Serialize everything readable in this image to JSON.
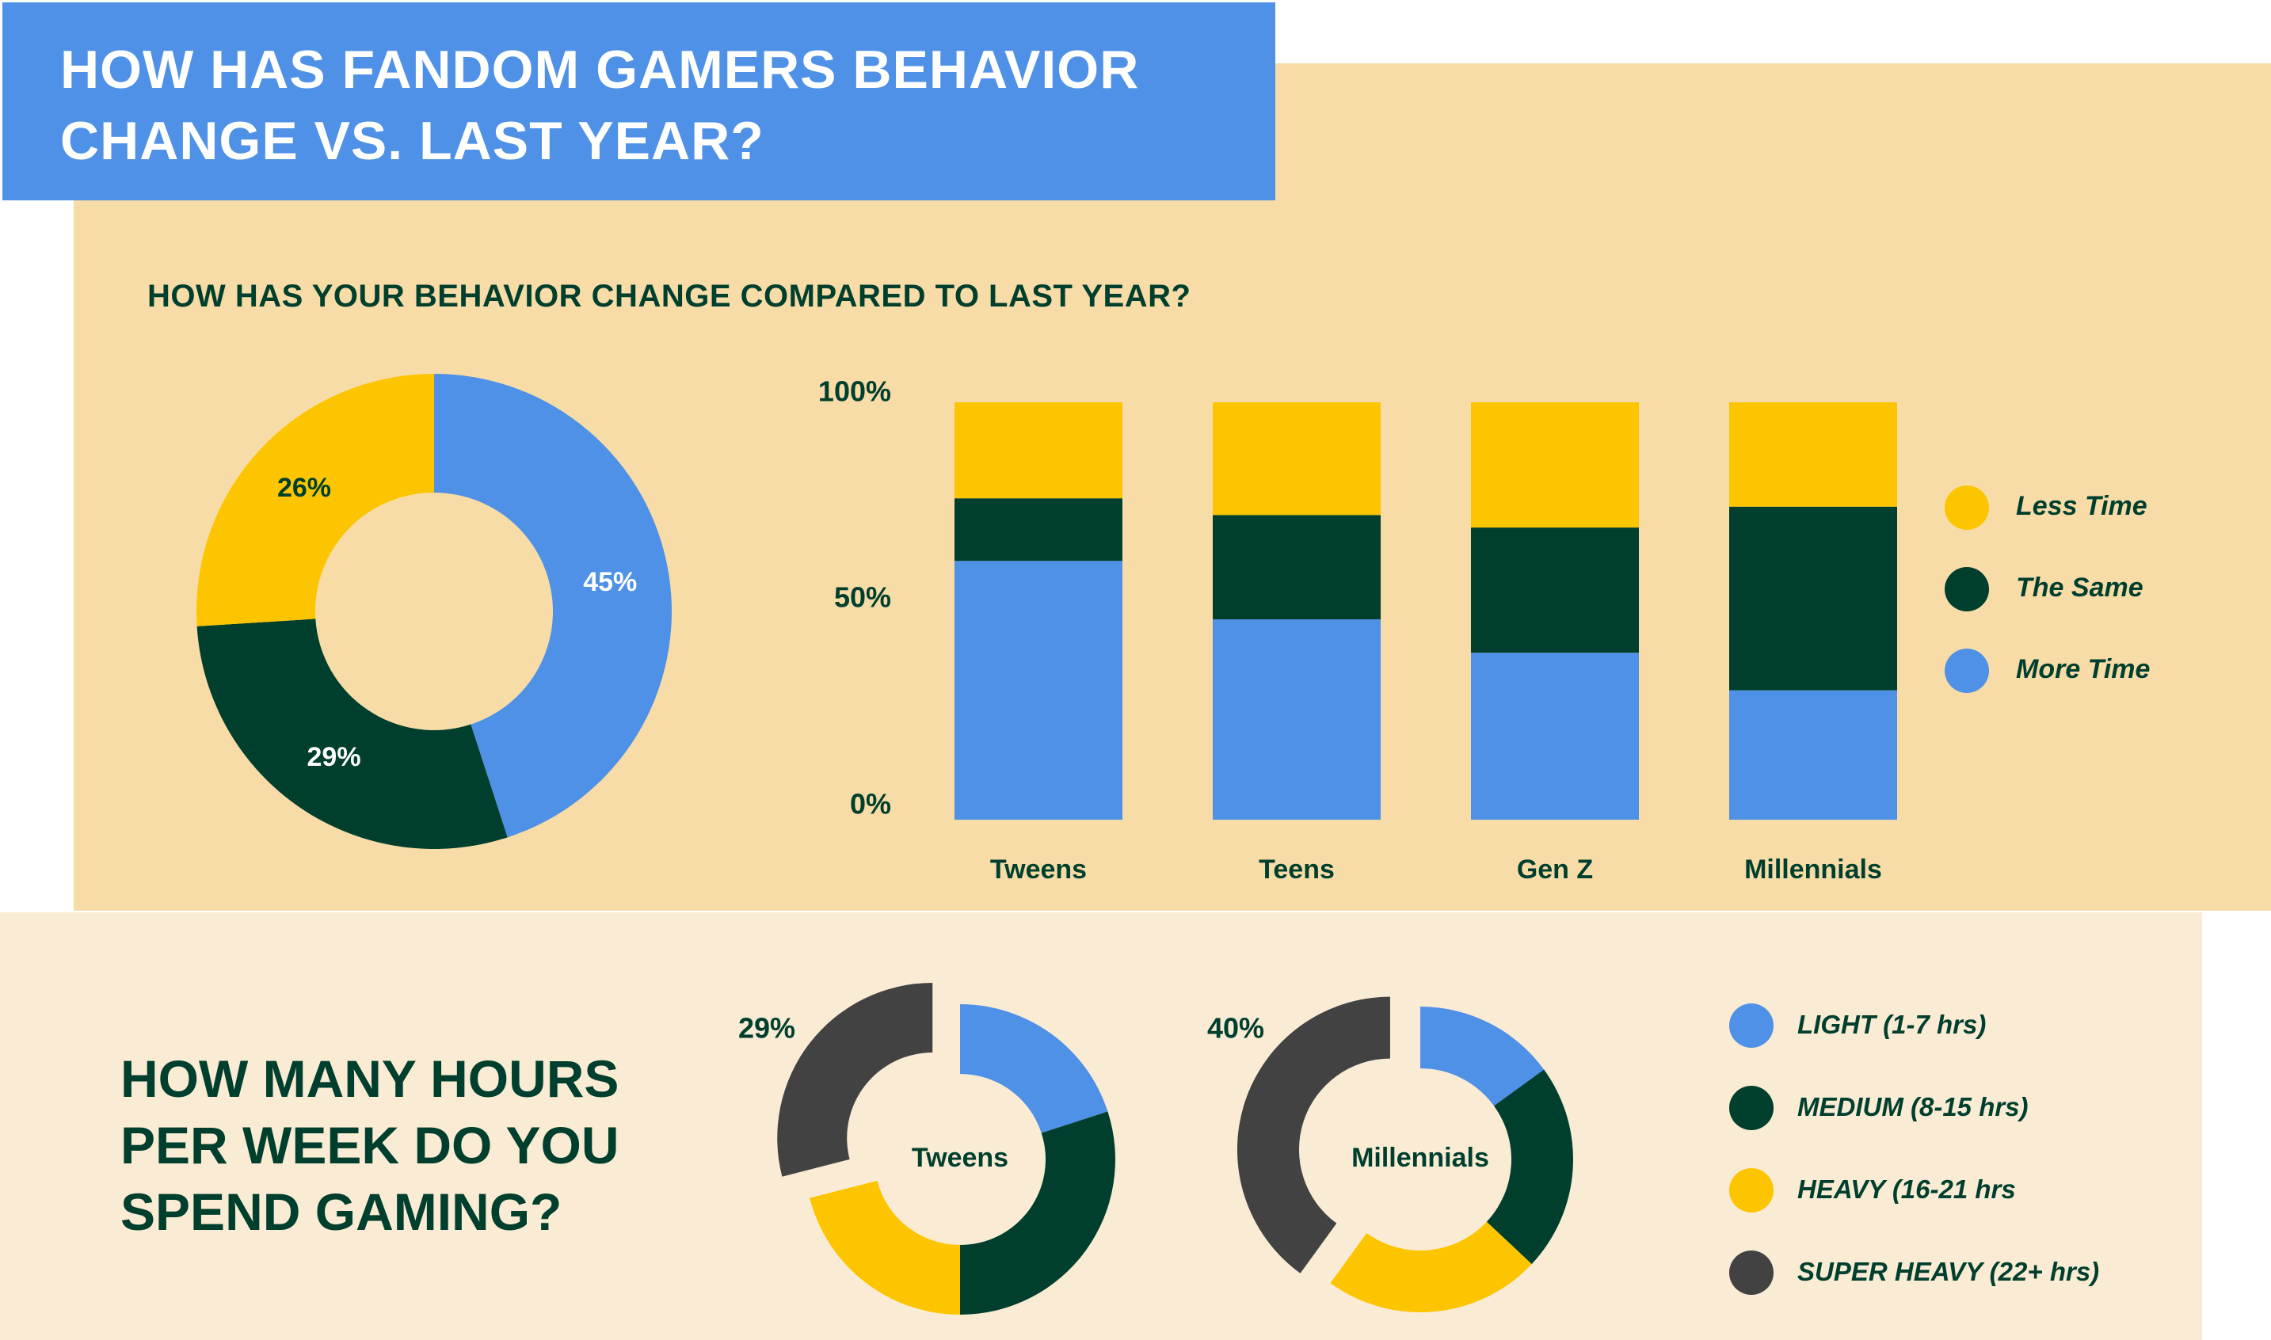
{
  "header": {
    "title_line1": "HOW HAS FANDOM GAMERS BEHAVIOR",
    "title_line2": "CHANGE VS. LAST YEAR?"
  },
  "behavior": {
    "subtitle": "HOW HAS YOUR BEHAVIOR CHANGE COMPARED TO LAST YEAR?"
  },
  "hours": {
    "title_line1": "HOW MANY HOURS",
    "title_line2": "PER WEEK DO YOU",
    "title_line3": "SPEND GAMING?"
  },
  "colors": {
    "blue": "#4f91e6",
    "green": "#003f2d",
    "yellow": "#fcc500",
    "dark": "#424242"
  },
  "chart_data": [
    {
      "type": "pie",
      "subtype": "donut",
      "slices": [
        {
          "label": "More Time",
          "value": 45,
          "display": "45%",
          "color": "#4f91e6"
        },
        {
          "label": "The Same",
          "value": 29,
          "display": "29%",
          "color": "#003f2d"
        },
        {
          "label": "Less Time",
          "value": 26,
          "display": "26%",
          "color": "#fcc500"
        }
      ]
    },
    {
      "type": "bar",
      "stacked": true,
      "categories": [
        "Tweens",
        "Teens",
        "Gen Z",
        "Millennials"
      ],
      "series": [
        {
          "name": "More Time",
          "color": "#4f91e6",
          "values": [
            62,
            48,
            40,
            31
          ]
        },
        {
          "name": "The Same",
          "color": "#003f2d",
          "values": [
            15,
            25,
            30,
            44
          ]
        },
        {
          "name": "Less Time",
          "color": "#fcc500",
          "values": [
            23,
            27,
            30,
            25
          ]
        }
      ],
      "yticks": [
        "0%",
        "50%",
        "100%"
      ],
      "ylim": [
        0,
        100
      ],
      "legend": "right"
    },
    {
      "type": "pie",
      "subtype": "donut",
      "center_label": "Tweens",
      "highlight_label": "29%",
      "slices": [
        {
          "label": "LIGHT (1-7 hrs)",
          "value": 20,
          "color": "#4f91e6"
        },
        {
          "label": "MEDIUM (8-15 hrs)",
          "value": 30,
          "color": "#003f2d"
        },
        {
          "label": "HEAVY (16-21 hrs",
          "value": 21,
          "color": "#fcc500"
        },
        {
          "label": "SUPER HEAVY (22+ hrs)",
          "value": 29,
          "color": "#424242",
          "exploded": true
        }
      ]
    },
    {
      "type": "pie",
      "subtype": "donut",
      "center_label": "Millennials",
      "highlight_label": "40%",
      "slices": [
        {
          "label": "LIGHT (1-7 hrs)",
          "value": 15,
          "color": "#4f91e6"
        },
        {
          "label": "MEDIUM (8-15 hrs)",
          "value": 22,
          "color": "#003f2d"
        },
        {
          "label": "HEAVY (16-21 hrs",
          "value": 23,
          "color": "#fcc500"
        },
        {
          "label": "SUPER HEAVY (22+ hrs)",
          "value": 40,
          "color": "#424242",
          "exploded": true
        }
      ]
    }
  ],
  "legend_behavior": [
    {
      "label": "Less Time",
      "color": "#fcc500"
    },
    {
      "label": "The Same",
      "color": "#003f2d"
    },
    {
      "label": "More Time",
      "color": "#4f91e6"
    }
  ],
  "legend_hours": [
    {
      "label": "LIGHT (1-7 hrs)",
      "color": "#4f91e6"
    },
    {
      "label": "MEDIUM (8-15 hrs)",
      "color": "#003f2d"
    },
    {
      "label": "HEAVY (16-21 hrs",
      "color": "#fcc500"
    },
    {
      "label": "SUPER HEAVY (22+ hrs)",
      "color": "#424242"
    }
  ]
}
